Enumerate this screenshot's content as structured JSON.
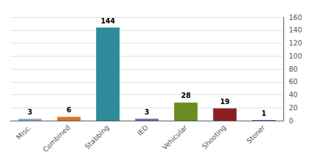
{
  "chart_data": {
    "type": "bar",
    "categories": [
      "Misc.",
      "Combined",
      "Stabbing",
      "IED",
      "Vehicular",
      "Shooting",
      "Stoner"
    ],
    "values": [
      3,
      6,
      144,
      3,
      28,
      19,
      1
    ],
    "colors": [
      "#8EA9C1",
      "#D4782A",
      "#2E8B9A",
      "#7B5EA7",
      "#6B8E23",
      "#8B2020",
      "#4A72B0"
    ],
    "ylim": [
      0,
      160
    ],
    "yticks": [
      0,
      20,
      40,
      60,
      80,
      100,
      120,
      140,
      160
    ],
    "grid": true,
    "data_labels": true
  }
}
